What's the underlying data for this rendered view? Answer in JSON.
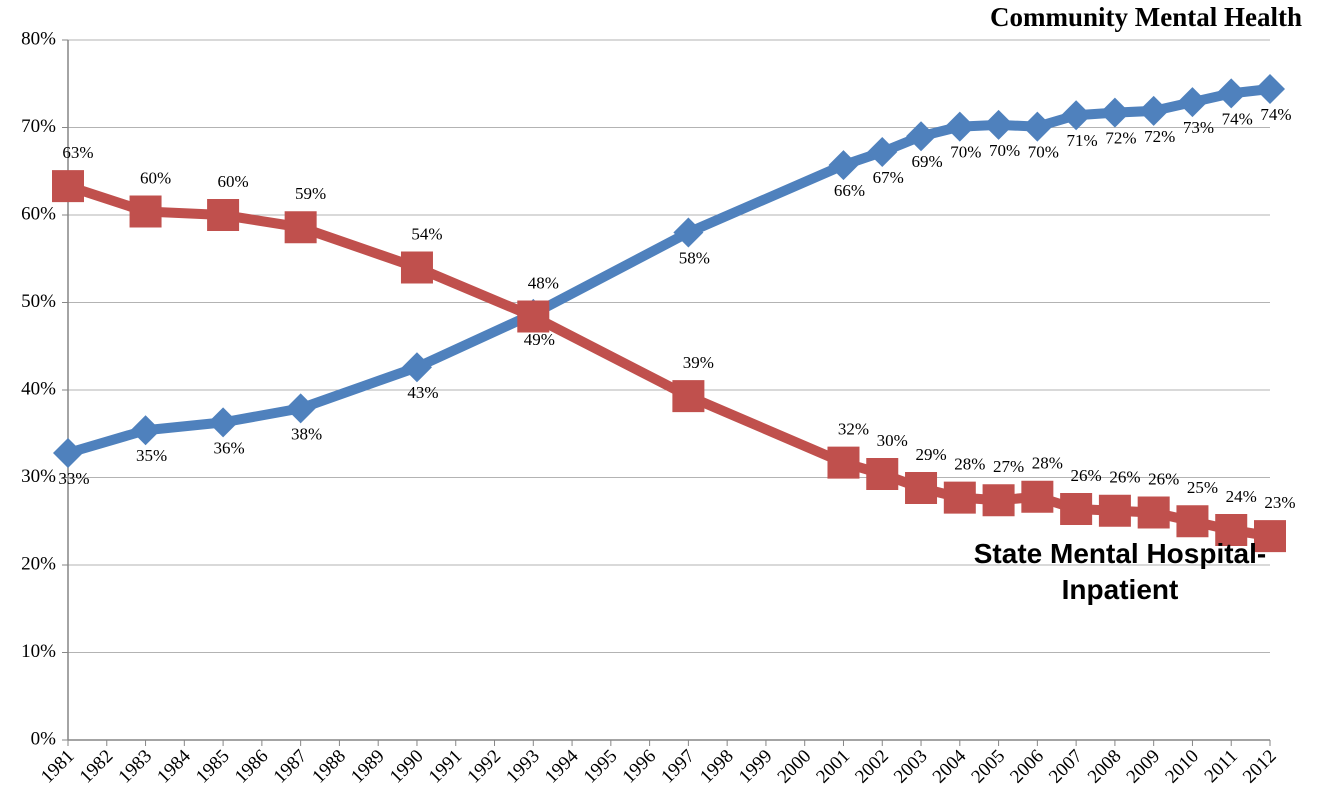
{
  "chart_data": {
    "type": "line",
    "x": [
      1981,
      1983,
      1985,
      1987,
      1990,
      1993,
      1997,
      2001,
      2002,
      2003,
      2004,
      2005,
      2006,
      2007,
      2008,
      2009,
      2010,
      2011,
      2012
    ],
    "series": [
      {
        "name": "Community Mental Health",
        "color": "#4f81bd",
        "marker": "diamond",
        "values": [
          32.8,
          35.4,
          36.3,
          37.9,
          42.6,
          48.7,
          58.0,
          65.7,
          67.2,
          69.0,
          70.1,
          70.3,
          70.1,
          71.4,
          71.7,
          71.9,
          72.9,
          73.9,
          74.4
        ],
        "value_labels": [
          "33%",
          "35%",
          "36%",
          "38%",
          "43%",
          "49%",
          "58%",
          "66%",
          "67%",
          "69%",
          "70%",
          "70%",
          "70%",
          "71%",
          "72%",
          "72%",
          "73%",
          "74%",
          "74%"
        ]
      },
      {
        "name": "State Mental Hospital-Inpatient",
        "color": "#c0504d",
        "marker": "square",
        "values": [
          63.3,
          60.4,
          60.0,
          58.6,
          54.0,
          48.4,
          39.3,
          31.7,
          30.4,
          28.8,
          27.7,
          27.4,
          27.8,
          26.4,
          26.2,
          26.0,
          25.0,
          24.0,
          23.3
        ],
        "value_labels": [
          "63%",
          "60%",
          "60%",
          "59%",
          "54%",
          "48%",
          "39%",
          "32%",
          "30%",
          "29%",
          "28%",
          "27%",
          "28%",
          "26%",
          "26%",
          "26%",
          "25%",
          "24%",
          "23%"
        ]
      }
    ],
    "xlim": [
      1981,
      2012
    ],
    "xticks": [
      1981,
      1982,
      1983,
      1984,
      1985,
      1986,
      1987,
      1988,
      1989,
      1990,
      1991,
      1992,
      1993,
      1994,
      1995,
      1996,
      1997,
      1998,
      1999,
      2000,
      2001,
      2002,
      2003,
      2004,
      2005,
      2006,
      2007,
      2008,
      2009,
      2010,
      2011,
      2012
    ],
    "ylim": [
      0,
      80
    ],
    "yticks": [
      {
        "value": 0,
        "label": "0%"
      },
      {
        "value": 10,
        "label": "10%"
      },
      {
        "value": 20,
        "label": "20%"
      },
      {
        "value": 30,
        "label": "30%"
      },
      {
        "value": 40,
        "label": "40%"
      },
      {
        "value": 50,
        "label": "50%"
      },
      {
        "value": 60,
        "label": "60%"
      },
      {
        "value": 70,
        "label": "70%"
      },
      {
        "value": 80,
        "label": "80%"
      }
    ],
    "grid": true
  }
}
